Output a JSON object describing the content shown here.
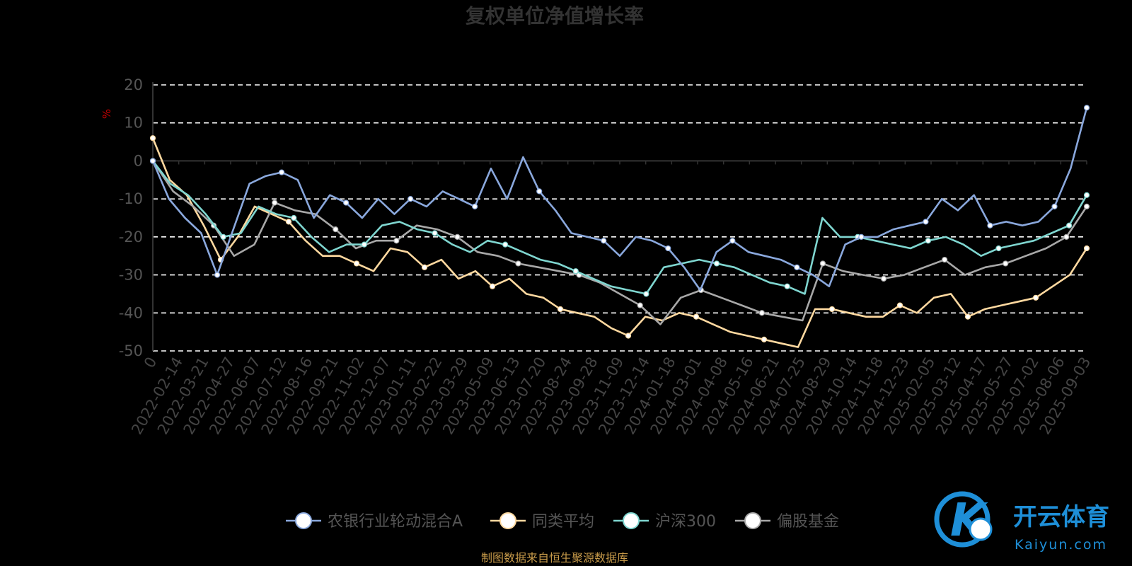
{
  "chart_data": {
    "type": "line",
    "title": "复权单位净值增长率",
    "ylabel": "%",
    "ylim": [
      -50,
      20
    ],
    "yticks": [
      20,
      10,
      0,
      -10,
      -20,
      -30,
      -40,
      -50
    ],
    "x_tick_labels": [
      "0",
      "2022-02-14",
      "2022-03-21",
      "2022-04-27",
      "2022-06-07",
      "2022-07-12",
      "2022-08-16",
      "2022-09-21",
      "2022-11-02",
      "2022-12-07",
      "2023-01-11",
      "2023-02-22",
      "2023-03-29",
      "2023-05-09",
      "2023-06-13",
      "2023-07-20",
      "2023-08-24",
      "2023-09-28",
      "2023-11-09",
      "2023-12-14",
      "2024-01-18",
      "2024-03-01",
      "2024-04-08",
      "2024-05-16",
      "2024-06-21",
      "2024-07-25",
      "2024-08-29",
      "2024-10-14",
      "2024-11-18",
      "2024-12-23",
      "2025-02-05",
      "2025-03-12",
      "2025-04-17",
      "2025-05-27",
      "2025-07-02",
      "2025-08-06",
      "2025-09-03"
    ],
    "grid": true,
    "legend_position": "bottom",
    "series": [
      {
        "name": "农银行业轮动混合A",
        "color": "#8aa8dd",
        "values": [
          0,
          -10,
          -15,
          -19,
          -30,
          -18,
          -6,
          -4,
          -3,
          -5,
          -15,
          -9,
          -11,
          -15,
          -10,
          -14,
          -10,
          -12,
          -8,
          -10,
          -12,
          -2,
          -10,
          1,
          -8,
          -13,
          -19,
          -20,
          -21,
          -25,
          -20,
          -21,
          -23,
          -28,
          -34,
          -24,
          -21,
          -24,
          -25,
          -26,
          -28,
          -30,
          -33,
          -22,
          -20,
          -20,
          -18,
          -17,
          -16,
          -10,
          -13,
          -9,
          -17,
          -16,
          -17,
          -16,
          -12,
          -2,
          14
        ]
      },
      {
        "name": "同类平均",
        "color": "#ffd9a0",
        "values": [
          6,
          -5,
          -9,
          -17,
          -26,
          -20,
          -12,
          -14,
          -16,
          -21,
          -25,
          -25,
          -27,
          -29,
          -23,
          -24,
          -28,
          -26,
          -31,
          -29,
          -33,
          -31,
          -35,
          -36,
          -39,
          -40,
          -41,
          -44,
          -46,
          -41,
          -42,
          -40,
          -41,
          -43,
          -45,
          -46,
          -47,
          -48,
          -49,
          -39,
          -39,
          -40,
          -41,
          -41,
          -38,
          -40,
          -36,
          -35,
          -41,
          -39,
          -38,
          -37,
          -36,
          -33,
          -30,
          -23
        ]
      },
      {
        "name": "沪深300",
        "color": "#7fd6d0",
        "values": [
          0,
          -6,
          -9,
          -14,
          -20,
          -19,
          -12,
          -14,
          -15,
          -20,
          -24,
          -22,
          -22,
          -17,
          -16,
          -18,
          -19,
          -22,
          -24,
          -21,
          -22,
          -24,
          -26,
          -27,
          -29,
          -31,
          -33,
          -34,
          -35,
          -28,
          -27,
          -26,
          -27,
          -28,
          -30,
          -32,
          -33,
          -35,
          -15,
          -20,
          -20,
          -21,
          -22,
          -23,
          -21,
          -20,
          -22,
          -25,
          -23,
          -22,
          -21,
          -19,
          -17,
          -9
        ]
      },
      {
        "name": "偏股基金",
        "color": "#a8a8a8",
        "values": [
          0,
          -8,
          -12,
          -17,
          -25,
          -22,
          -11,
          -13,
          -14,
          -18,
          -23,
          -21,
          -21,
          -17,
          -18,
          -20,
          -24,
          -25,
          -27,
          -28,
          -29,
          -30,
          -32,
          -35,
          -38,
          -43,
          -36,
          -34,
          -36,
          -38,
          -40,
          -41,
          -42,
          -27,
          -29,
          -30,
          -31,
          -30,
          -28,
          -26,
          -30,
          -28,
          -27,
          -25,
          -23,
          -20,
          -12
        ]
      }
    ]
  },
  "footer": {
    "source": "制图数据来自恒生聚源数据库"
  },
  "brand": {
    "name": "开云体育",
    "sub": "Kaiyun.com",
    "mark": "K"
  }
}
